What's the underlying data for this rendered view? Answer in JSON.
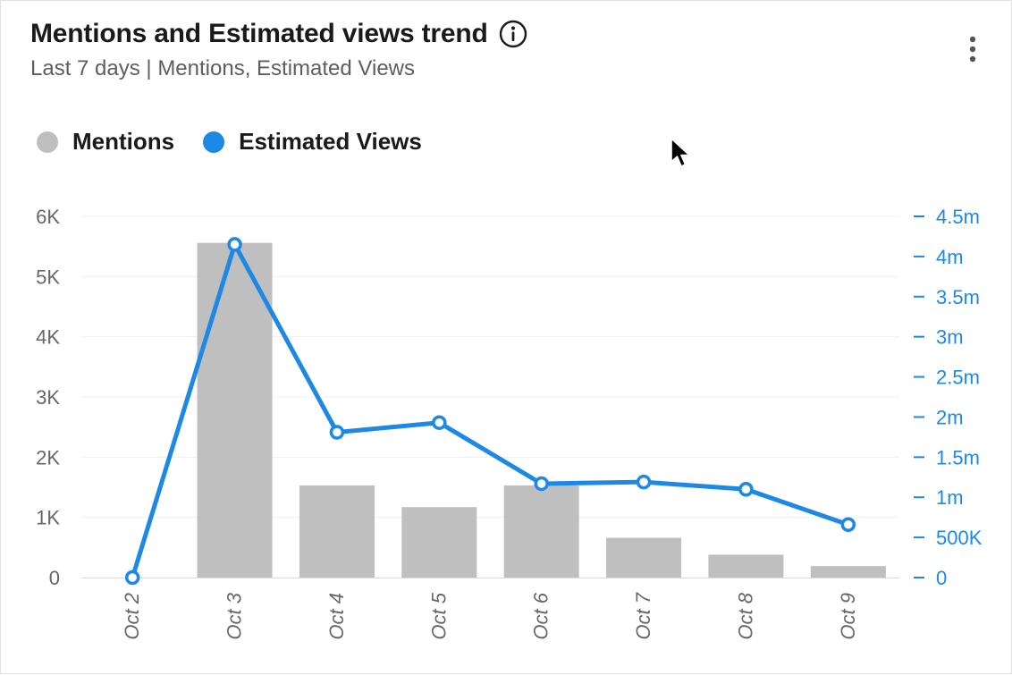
{
  "header": {
    "title": "Mentions and Estimated views trend",
    "subtitle": "Last 7 days | Mentions, Estimated Views"
  },
  "icons": {
    "info": "info-icon",
    "menu": "more-vertical-icon",
    "cursor": "mouse-pointer-icon"
  },
  "legend": [
    {
      "label": "Mentions",
      "color": "#bfbfbf"
    },
    {
      "label": "Estimated Views",
      "color": "#1e88e5"
    }
  ],
  "chart_data": {
    "type": "bar",
    "categories": [
      "Oct 2",
      "Oct 3",
      "Oct 4",
      "Oct 5",
      "Oct 6",
      "Oct 7",
      "Oct 8",
      "Oct 9"
    ],
    "series": [
      {
        "name": "Mentions",
        "type": "bar",
        "axis": "left",
        "color": "#bfbfbf",
        "values": [
          0,
          5560,
          1530,
          1170,
          1530,
          660,
          380,
          190
        ]
      },
      {
        "name": "Estimated Views",
        "type": "line",
        "axis": "right",
        "color": "#1e88e5",
        "values": [
          0,
          4150000,
          1810000,
          1930000,
          1170000,
          1190000,
          1100000,
          660000
        ]
      }
    ],
    "yleft": {
      "ylim": [
        0,
        6000
      ],
      "ticks": [
        0,
        1000,
        2000,
        3000,
        4000,
        5000,
        6000
      ],
      "tick_labels": [
        "0",
        "1K",
        "2K",
        "3K",
        "4K",
        "5K",
        "6K"
      ]
    },
    "yright": {
      "ylim": [
        0,
        4500000
      ],
      "ticks": [
        0,
        500000,
        1000000,
        1500000,
        2000000,
        2500000,
        3000000,
        3500000,
        4000000,
        4500000
      ],
      "tick_labels": [
        "0",
        "500K",
        "1m",
        "1.5m",
        "2m",
        "2.5m",
        "3m",
        "3.5m",
        "4m",
        "4.5m"
      ]
    },
    "grid": true,
    "legend_position": "top-left"
  }
}
